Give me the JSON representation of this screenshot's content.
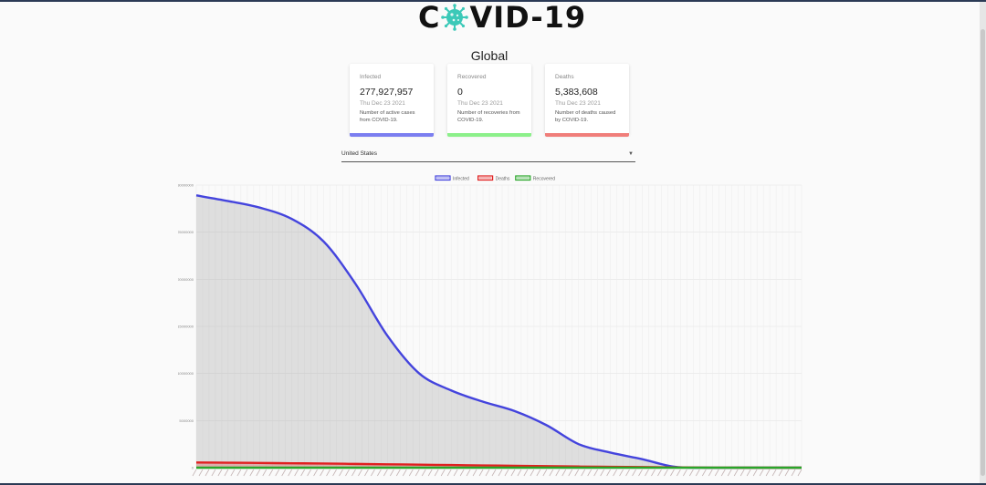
{
  "header": {
    "logo_left": "C",
    "logo_right": "VID-19",
    "logo_icon": "virus-icon"
  },
  "region_title": "Global",
  "cards": [
    {
      "label": "Infected",
      "value": "277,927,957",
      "date": "Thu Dec 23 2021",
      "desc_line1": "Number of active cases",
      "desc_line2": "from COVID-19.",
      "color": "#7b7ef0"
    },
    {
      "label": "Recovered",
      "value": "0",
      "date": "Thu Dec 23 2021",
      "desc_line1": "Number of recoveries from",
      "desc_line2": "COVID-19.",
      "color": "#8cf08a"
    },
    {
      "label": "Deaths",
      "value": "5,383,608",
      "date": "Thu Dec 23 2021",
      "desc_line1": "Number of deaths caused",
      "desc_line2": "by COVID-19.",
      "color": "#f07e7a"
    }
  ],
  "country_select": {
    "value": "United States",
    "icon": "caret-down-icon"
  },
  "chart_data": {
    "type": "line",
    "legend": [
      {
        "name": "Infected",
        "color": "#4444dd"
      },
      {
        "name": "Deaths",
        "color": "#e02020"
      },
      {
        "name": "Recovered",
        "color": "#2aa62a"
      }
    ],
    "legend_position": "top-center",
    "y_ticks": [
      "30000000",
      "25000000",
      "20000000",
      "15000000",
      "10000000",
      "5000000",
      "0"
    ],
    "ylim": [
      0,
      30000000
    ],
    "grid": true,
    "series": [
      {
        "name": "Infected",
        "values": [
          28900000,
          28300000,
          27600000,
          26400000,
          24000000,
          19500000,
          14000000,
          10000000,
          8200000,
          7000000,
          6000000,
          4500000,
          2500000,
          1600000,
          900000,
          100000,
          0,
          0,
          0,
          0
        ]
      },
      {
        "name": "Deaths",
        "values": [
          550000,
          530000,
          500000,
          470000,
          440000,
          400000,
          360000,
          320000,
          280000,
          240000,
          200000,
          160000,
          120000,
          90000,
          60000,
          30000,
          10000,
          0,
          0,
          0
        ]
      },
      {
        "name": "Recovered",
        "values": [
          0,
          0,
          0,
          0,
          0,
          0,
          0,
          0,
          0,
          0,
          0,
          0,
          0,
          0,
          0,
          0,
          0,
          0,
          0,
          0
        ]
      }
    ]
  }
}
